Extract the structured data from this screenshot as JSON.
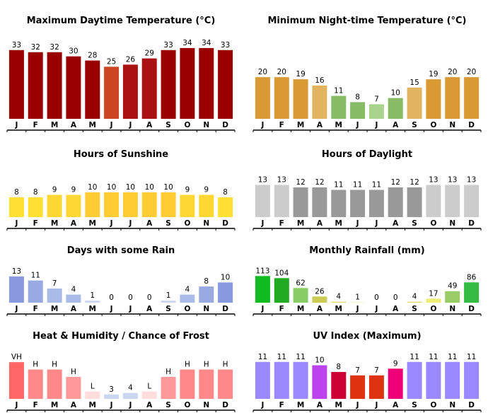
{
  "colors": {
    "base_axis": "#000000",
    "tick": "#000000"
  },
  "chart_data": [
    {
      "type": "bar",
      "title": "Maximum Daytime Temperature (°C)",
      "categories": [
        "J",
        "F",
        "M",
        "A",
        "M",
        "J",
        "J",
        "A",
        "S",
        "O",
        "N",
        "D"
      ],
      "values": [
        33,
        32,
        32,
        30,
        28,
        25,
        26,
        29,
        33,
        34,
        34,
        33
      ],
      "labels": [
        "33",
        "32",
        "32",
        "30",
        "28",
        "25",
        "26",
        "29",
        "33",
        "34",
        "34",
        "33"
      ],
      "colors": [
        "#990000",
        "#990000",
        "#990000",
        "#990000",
        "#990000",
        "#cc4422",
        "#aa1111",
        "#aa1111",
        "#990000",
        "#990000",
        "#990000",
        "#990000"
      ],
      "ylim": [
        0,
        36
      ]
    },
    {
      "type": "bar",
      "title": "Minimum Night-time Temperature (°C)",
      "categories": [
        "J",
        "F",
        "M",
        "A",
        "M",
        "J",
        "J",
        "A",
        "S",
        "O",
        "N",
        "D"
      ],
      "values": [
        20,
        20,
        19,
        16,
        11,
        8,
        7,
        10,
        15,
        19,
        20,
        20
      ],
      "labels": [
        "20",
        "20",
        "19",
        "16",
        "11",
        "8",
        "7",
        "10",
        "15",
        "19",
        "20",
        "20"
      ],
      "colors": [
        "#d99933",
        "#d99933",
        "#d99933",
        "#e2b460",
        "#88bb66",
        "#88bb66",
        "#aad48c",
        "#88bb66",
        "#e2b460",
        "#d99933",
        "#d99933",
        "#d99933"
      ],
      "ylim": [
        0,
        36
      ]
    },
    {
      "type": "bar",
      "title": "Hours of Sunshine",
      "categories": [
        "J",
        "F",
        "M",
        "A",
        "M",
        "J",
        "J",
        "A",
        "S",
        "O",
        "N",
        "D"
      ],
      "values": [
        8,
        8,
        9,
        9,
        10,
        10,
        10,
        10,
        10,
        9,
        9,
        8
      ],
      "labels": [
        "8",
        "8",
        "9",
        "9",
        "10",
        "10",
        "10",
        "10",
        "10",
        "9",
        "9",
        "8"
      ],
      "colors": [
        "#ffe033",
        "#ffe033",
        "#ffd733",
        "#ffd733",
        "#ffcc33",
        "#ffcc33",
        "#ffcc33",
        "#ffcc33",
        "#ffcc33",
        "#ffd733",
        "#ffd733",
        "#ffe033"
      ],
      "ylim": [
        0,
        24
      ]
    },
    {
      "type": "bar",
      "title": "Hours of Daylight",
      "categories": [
        "J",
        "F",
        "M",
        "A",
        "M",
        "J",
        "J",
        "A",
        "S",
        "O",
        "N",
        "D"
      ],
      "values": [
        13,
        13,
        12,
        12,
        11,
        11,
        11,
        12,
        12,
        13,
        13,
        13
      ],
      "labels": [
        "13",
        "13",
        "12",
        "12",
        "11",
        "11",
        "11",
        "12",
        "12",
        "13",
        "13",
        "13"
      ],
      "colors": [
        "#cccccc",
        "#cccccc",
        "#999999",
        "#999999",
        "#999999",
        "#999999",
        "#999999",
        "#999999",
        "#999999",
        "#cccccc",
        "#cccccc",
        "#cccccc"
      ],
      "ylim": [
        0,
        24
      ]
    },
    {
      "type": "bar",
      "title": "Days with some Rain",
      "categories": [
        "J",
        "F",
        "M",
        "A",
        "M",
        "J",
        "J",
        "A",
        "S",
        "O",
        "N",
        "D"
      ],
      "values": [
        13,
        11,
        7,
        4,
        1,
        0,
        0,
        0,
        1,
        4,
        8,
        10
      ],
      "labels": [
        "13",
        "11",
        "7",
        "4",
        "1",
        "0",
        "0",
        "0",
        "1",
        "4",
        "8",
        "10"
      ],
      "colors": [
        "#8899dd",
        "#99aae2",
        "#aabbe8",
        "#aabbe8",
        "#ccd5f2",
        "#ccd5f2",
        "#ccd5f2",
        "#ccd5f2",
        "#ccd5f2",
        "#aabbe8",
        "#99aae2",
        "#8899dd"
      ],
      "ylim": [
        0,
        14
      ]
    },
    {
      "type": "bar",
      "title": "Monthly Rainfall (mm)",
      "categories": [
        "J",
        "F",
        "M",
        "A",
        "M",
        "J",
        "J",
        "A",
        "S",
        "O",
        "N",
        "D"
      ],
      "values": [
        113,
        104,
        62,
        26,
        4,
        1,
        0,
        0,
        4,
        17,
        49,
        86
      ],
      "labels": [
        "113",
        "104",
        "62",
        "26",
        "4",
        "1",
        "0",
        "0",
        "4",
        "17",
        "49",
        "86"
      ],
      "colors": [
        "#11bb22",
        "#22aa22",
        "#88cc66",
        "#cccc55",
        "#dddd66",
        "#dddd66",
        "#dddd66",
        "#dddd66",
        "#dddd66",
        "#eeee77",
        "#99cc66",
        "#33bb44"
      ],
      "ylim": [
        0,
        120
      ]
    },
    {
      "type": "bar",
      "title": "Heat & Humidity / Chance of Frost",
      "categories": [
        "J",
        "F",
        "M",
        "A",
        "M",
        "J",
        "J",
        "A",
        "S",
        "O",
        "N",
        "D"
      ],
      "values": [
        5,
        4,
        4,
        3,
        1,
        0.6,
        0.8,
        1,
        3,
        4,
        4,
        4
      ],
      "labels": [
        "VH",
        "H",
        "H",
        "H",
        "L",
        "3",
        "4",
        "L",
        "H",
        "H",
        "H",
        "H"
      ],
      "colors": [
        "#ff6666",
        "#ff8888",
        "#ff8888",
        "#ff9999",
        "#ffdddd",
        "#ccd5f2",
        "#ccd5f2",
        "#ffdddd",
        "#ff9999",
        "#ff8888",
        "#ff8888",
        "#ff8888"
      ],
      "ylim": [
        0,
        5.4
      ]
    },
    {
      "type": "bar",
      "title": "UV Index (Maximum)",
      "categories": [
        "J",
        "F",
        "M",
        "A",
        "M",
        "J",
        "J",
        "A",
        "S",
        "O",
        "N",
        "D"
      ],
      "values": [
        11,
        11,
        11,
        10,
        8,
        7,
        7,
        9,
        11,
        11,
        11,
        11
      ],
      "labels": [
        "11",
        "11",
        "11",
        "10",
        "8",
        "7",
        "7",
        "9",
        "11",
        "11",
        "11",
        "11"
      ],
      "colors": [
        "#9988ff",
        "#9988ff",
        "#9988ff",
        "#bb44ee",
        "#cc0033",
        "#dd3311",
        "#dd3311",
        "#ee0077",
        "#9988ff",
        "#9988ff",
        "#9988ff",
        "#9988ff"
      ],
      "ylim": [
        0,
        11.8
      ]
    }
  ]
}
